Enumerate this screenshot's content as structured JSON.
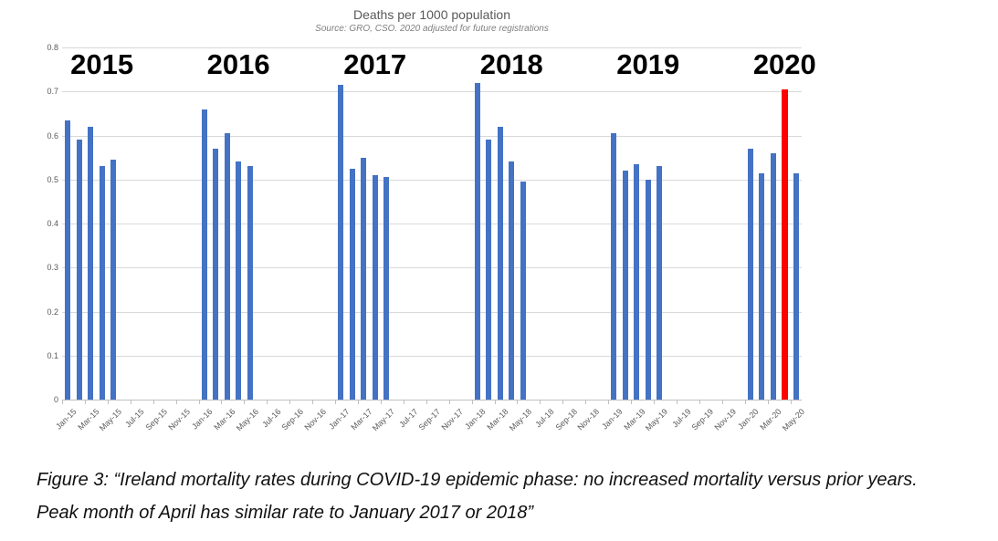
{
  "chart_data": {
    "type": "bar",
    "title": "Deaths per 1000 population",
    "subtitle": "Source: GRO, CSO. 2020 adjusted for future registrations",
    "xlabel": "",
    "ylabel": "",
    "ylim": [
      0,
      0.8
    ],
    "ytick_labels": [
      "0",
      "0.1",
      "0.2",
      "0.3",
      "0.4",
      "0.5",
      "0.6",
      "0.7",
      "0.8"
    ],
    "grid": true,
    "legend": false,
    "month_axis": {
      "start": "Jan-15",
      "end": "May-20",
      "total_months": 65,
      "label_every": 2
    },
    "xtick_labels": [
      "Jan-15",
      "Mar-15",
      "May-15",
      "Jul-15",
      "Sep-15",
      "Nov-15",
      "Jan-16",
      "Mar-16",
      "May-16",
      "Jul-16",
      "Sep-16",
      "Nov-16",
      "Jan-17",
      "Mar-17",
      "May-17",
      "Jul-17",
      "Sep-17",
      "Nov-17",
      "Jan-18",
      "Mar-18",
      "May-18",
      "Jul-18",
      "Sep-18",
      "Nov-18",
      "Jan-19",
      "Mar-19",
      "May-19",
      "Jul-19",
      "Sep-19",
      "Nov-19",
      "Jan-20",
      "Mar-20",
      "May-20"
    ],
    "years": [
      {
        "year": "2015",
        "months": [
          "Jan",
          "Feb",
          "Mar",
          "Apr",
          "May"
        ],
        "values": [
          0.635,
          0.59,
          0.62,
          0.53,
          0.545
        ]
      },
      {
        "year": "2016",
        "months": [
          "Jan",
          "Feb",
          "Mar",
          "Apr",
          "May"
        ],
        "values": [
          0.66,
          0.57,
          0.605,
          0.54,
          0.53
        ]
      },
      {
        "year": "2017",
        "months": [
          "Jan",
          "Feb",
          "Mar",
          "Apr",
          "May"
        ],
        "values": [
          0.715,
          0.525,
          0.55,
          0.51,
          0.505
        ]
      },
      {
        "year": "2018",
        "months": [
          "Jan",
          "Feb",
          "Mar",
          "Apr",
          "May"
        ],
        "values": [
          0.72,
          0.59,
          0.62,
          0.54,
          0.495
        ]
      },
      {
        "year": "2019",
        "months": [
          "Jan",
          "Feb",
          "Mar",
          "Apr",
          "May"
        ],
        "values": [
          0.605,
          0.52,
          0.535,
          0.5,
          0.53
        ]
      },
      {
        "year": "2020",
        "months": [
          "Jan",
          "Feb",
          "Mar",
          "Apr",
          "May"
        ],
        "values": [
          0.57,
          0.515,
          0.56,
          0.705,
          0.515
        ]
      }
    ],
    "highlight": {
      "year": "2020",
      "month": "Apr"
    },
    "colors": {
      "bar": "#4472C4",
      "highlight_bar": "#FF0000",
      "gridline": "#D9D9D9",
      "axis_line": "#BFBFBF",
      "axis_text": "#595959",
      "title_text": "#595959",
      "subtitle_text": "#7F7F7F",
      "year_label": "#000000"
    }
  },
  "caption": {
    "line1": "Figure 3: “Ireland mortality rates during COVID-19 epidemic phase: no increased mortality versus prior years.",
    "line2": "Peak month of April has similar rate to January 2017 or 2018”"
  }
}
